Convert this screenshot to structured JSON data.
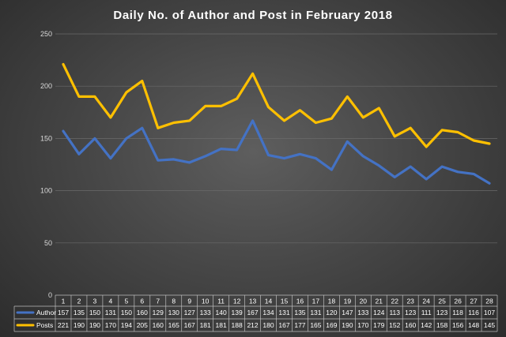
{
  "chart_data": {
    "type": "line",
    "title": "Daily No. of Author and Post in February 2018",
    "xlabel": "",
    "ylabel": "",
    "ylim": [
      0,
      250
    ],
    "yticks": [
      0,
      50,
      100,
      150,
      200,
      250
    ],
    "categories": [
      "1",
      "2",
      "3",
      "4",
      "5",
      "6",
      "7",
      "8",
      "9",
      "10",
      "11",
      "12",
      "13",
      "14",
      "15",
      "16",
      "17",
      "18",
      "19",
      "20",
      "21",
      "22",
      "23",
      "24",
      "25",
      "26",
      "27",
      "28"
    ],
    "series": [
      {
        "name": "Author",
        "color": "#4472c4",
        "values": [
          157,
          135,
          150,
          131,
          150,
          160,
          129,
          130,
          127,
          133,
          140,
          139,
          167,
          134,
          131,
          135,
          131,
          120,
          147,
          133,
          124,
          113,
          123,
          111,
          123,
          118,
          116,
          107
        ]
      },
      {
        "name": "Posts",
        "color": "#ffc000",
        "values": [
          221,
          190,
          190,
          170,
          194,
          205,
          160,
          165,
          167,
          181,
          181,
          188,
          212,
          180,
          167,
          177,
          165,
          169,
          190,
          170,
          179,
          152,
          160,
          142,
          158,
          156,
          148,
          145
        ]
      }
    ],
    "grid": true,
    "legend": "data-table-bottom"
  }
}
